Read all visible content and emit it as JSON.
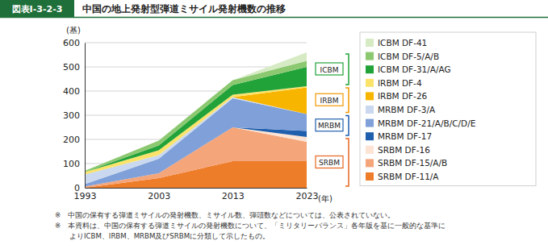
{
  "chart_data": {
    "type": "area",
    "stacked": true,
    "label": "図表Ⅰ-3-2-3",
    "title": "中国の地上発射型弾道ミサイル発射機数の推移",
    "y_label": "(基)",
    "x_label": "(年)",
    "x": [
      1993,
      2003,
      2013,
      2023
    ],
    "xlim": [
      1993,
      2023
    ],
    "xticks": [
      1993,
      2003,
      2013,
      2023
    ],
    "ylim": [
      0,
      600
    ],
    "yticks": [
      0,
      100,
      200,
      300,
      400,
      500,
      600
    ],
    "grid": true,
    "legend": "right",
    "series": [
      {
        "name": "ICBM DF-41",
        "color": "#d6ebc4",
        "values": [
          0,
          0,
          0,
          35
        ]
      },
      {
        "name": "ICBM DF-5/A/B",
        "color": "#8cc870",
        "values": [
          5,
          20,
          20,
          25
        ]
      },
      {
        "name": "ICBM DF-31/A/AG",
        "color": "#22a33a",
        "values": [
          0,
          20,
          40,
          80
        ]
      },
      {
        "name": "IRBM DF-4",
        "color": "#fbe36a",
        "values": [
          10,
          20,
          10,
          5
        ]
      },
      {
        "name": "IRBM DF-26",
        "color": "#f8b500",
        "values": [
          0,
          0,
          0,
          110
        ]
      },
      {
        "name": "MRBM DF-3/A",
        "color": "#cad9ef",
        "values": [
          40,
          15,
          5,
          0
        ]
      },
      {
        "name": "MRBM DF-21/A/B/C/D/E",
        "color": "#7fa0d8",
        "values": [
          10,
          60,
          120,
          70
        ]
      },
      {
        "name": "MRBM DF-17",
        "color": "#1f5fad",
        "values": [
          0,
          0,
          0,
          25
        ]
      },
      {
        "name": "SRBM DF-16",
        "color": "#fde3d3",
        "values": [
          0,
          0,
          0,
          20
        ]
      },
      {
        "name": "SRBM DF-15/A/B",
        "color": "#f5a57a",
        "values": [
          5,
          20,
          140,
          80
        ]
      },
      {
        "name": "SRBM DF-11/A",
        "color": "#ee7d2a",
        "values": [
          0,
          40,
          110,
          110
        ]
      }
    ],
    "groups": [
      {
        "label": "ICBM",
        "color": "#22a33a",
        "series": [
          0,
          1,
          2
        ]
      },
      {
        "label": "IRBM",
        "color": "#f39800",
        "series": [
          3,
          4
        ]
      },
      {
        "label": "MRBM",
        "color": "#1f5fad",
        "series": [
          5,
          6,
          7
        ]
      },
      {
        "label": "SRBM",
        "color": "#e8651f",
        "series": [
          8,
          9,
          10
        ]
      }
    ],
    "notes": [
      "※　中国の保有する弾道ミサイルの発射機数、ミサイル数、弾頭数などについては、公表されていない。",
      "※　本資料は、中国の保有する弾道ミサイルの発射機数について、「ミリタリーバランス」各年版を基に一般的な基準に",
      "　　よりICBM、IRBM、MRBM及びSRBMに分類して示したもの。"
    ]
  }
}
